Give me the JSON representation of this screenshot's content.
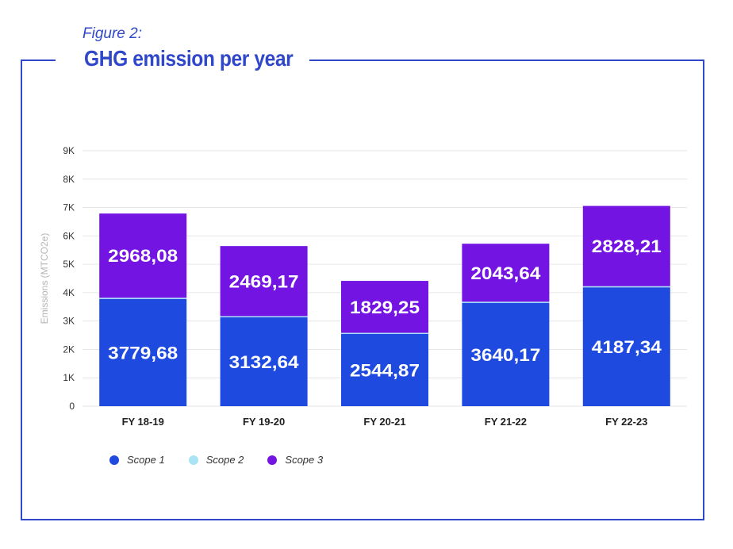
{
  "header": {
    "figure_label": "Figure 2:",
    "title": "GHG emission per year"
  },
  "colors": {
    "frame": "#2f47c8",
    "scope1": "#1e4ae0",
    "scope2": "#a8e4f5",
    "scope3": "#7314e3"
  },
  "chart_data": {
    "type": "bar",
    "stacked": true,
    "title": "GHG emission per year",
    "ylabel": "Emissions (MTCO2e)",
    "xlabel": "",
    "ylim": [
      0,
      9000
    ],
    "y_ticks": [
      0,
      1000,
      2000,
      3000,
      4000,
      5000,
      6000,
      7000,
      8000,
      9000
    ],
    "y_tick_labels": [
      "0",
      "1K",
      "2K",
      "3K",
      "4K",
      "5K",
      "6K",
      "7K",
      "8K",
      "9K"
    ],
    "grid": true,
    "legend": "bottom-left",
    "categories": [
      "FY 18-19",
      "FY 19-20",
      "FY 20-21",
      "FY 21-22",
      "FY 22-23"
    ],
    "series": [
      {
        "name": "Scope 1",
        "values": [
          3779.68,
          3132.64,
          2544.87,
          3640.17,
          4187.34
        ],
        "labels": [
          "3779,68",
          "3132,64",
          "2544,87",
          "3640,17",
          "4187,34"
        ]
      },
      {
        "name": "Scope 2",
        "values": [
          40,
          40,
          40,
          40,
          40
        ],
        "labels": []
      },
      {
        "name": "Scope 3",
        "values": [
          2968.08,
          2469.17,
          1829.25,
          2043.64,
          2828.21
        ],
        "labels": [
          "2968,08",
          "2469,17",
          "1829,25",
          "2043,64",
          "2828,21"
        ]
      }
    ]
  }
}
